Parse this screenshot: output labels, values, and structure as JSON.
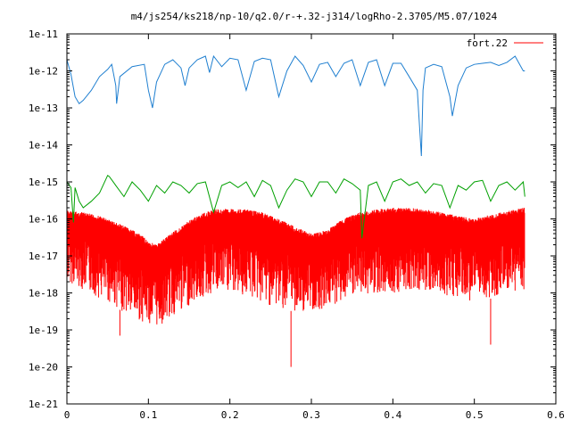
{
  "chart_data": {
    "type": "line",
    "title": "m4/js254/ks218/np-10/q2.0/r-+.32-j314/logRho-2.3705/M5.07/1024",
    "xlabel": "",
    "ylabel": "",
    "xlim": [
      0,
      0.6
    ],
    "ylim": [
      1e-21,
      1e-11
    ],
    "yscale": "log",
    "grid": false,
    "legend_position": "top-right",
    "x_ticks": [
      "0",
      "0.1",
      "0.2",
      "0.3",
      "0.4",
      "0.5",
      "0.6"
    ],
    "x_tick_values": [
      0,
      0.1,
      0.2,
      0.3,
      0.4,
      0.5,
      0.6
    ],
    "y_ticks": [
      "1e-21",
      "1e-20",
      "1e-19",
      "1e-18",
      "1e-17",
      "1e-16",
      "1e-15",
      "1e-14",
      "1e-13",
      "1e-12",
      "1e-11"
    ],
    "y_tick_values": [
      1e-21,
      1e-20,
      1e-19,
      1e-18,
      1e-17,
      1e-16,
      1e-15,
      1e-14,
      1e-13,
      1e-12,
      1e-11
    ],
    "series": [
      {
        "name": "",
        "color": "#1f7fd0",
        "x": [
          0,
          0.005,
          0.01,
          0.015,
          0.02,
          0.03,
          0.04,
          0.05,
          0.055,
          0.06,
          0.061,
          0.065,
          0.08,
          0.095,
          0.1,
          0.105,
          0.11,
          0.12,
          0.13,
          0.14,
          0.145,
          0.15,
          0.16,
          0.17,
          0.175,
          0.18,
          0.19,
          0.2,
          0.21,
          0.22,
          0.23,
          0.24,
          0.25,
          0.26,
          0.27,
          0.28,
          0.29,
          0.3,
          0.31,
          0.32,
          0.33,
          0.34,
          0.35,
          0.36,
          0.37,
          0.38,
          0.39,
          0.4,
          0.41,
          0.42,
          0.43,
          0.435,
          0.437,
          0.44,
          0.45,
          0.46,
          0.47,
          0.473,
          0.48,
          0.49,
          0.5,
          0.51,
          0.52,
          0.53,
          0.54,
          0.55,
          0.56,
          0.562
        ],
        "y": [
          2e-12,
          8e-13,
          2e-13,
          1.3e-13,
          1.6e-13,
          3e-13,
          7e-13,
          1.1e-12,
          1.5e-12,
          4e-13,
          1.3e-13,
          7e-13,
          1.3e-12,
          1.5e-12,
          3e-13,
          1e-13,
          5e-13,
          1.5e-12,
          2e-12,
          1.2e-12,
          4e-13,
          1.2e-12,
          2e-12,
          2.5e-12,
          9e-13,
          2.5e-12,
          1.3e-12,
          2.2e-12,
          2e-12,
          3e-13,
          1.8e-12,
          2.2e-12,
          2e-12,
          2e-13,
          1e-12,
          2.5e-12,
          1.4e-12,
          5e-13,
          1.5e-12,
          1.7e-12,
          7e-13,
          1.6e-12,
          2e-12,
          4e-13,
          1.7e-12,
          2e-12,
          4e-13,
          1.6e-12,
          1.6e-12,
          7e-13,
          3e-13,
          5e-15,
          3e-13,
          1.2e-12,
          1.5e-12,
          1.3e-12,
          2e-13,
          6e-14,
          4e-13,
          1.2e-12,
          1.5e-12,
          1.6e-12,
          1.7e-12,
          1.4e-12,
          1.7e-12,
          2.5e-12,
          1e-12,
          1e-12
        ]
      },
      {
        "name": "",
        "color": "#00a000",
        "x": [
          0,
          0.005,
          0.008,
          0.01,
          0.015,
          0.02,
          0.03,
          0.04,
          0.05,
          0.052,
          0.06,
          0.07,
          0.08,
          0.09,
          0.1,
          0.11,
          0.12,
          0.13,
          0.14,
          0.15,
          0.16,
          0.17,
          0.18,
          0.19,
          0.2,
          0.21,
          0.22,
          0.23,
          0.24,
          0.25,
          0.26,
          0.27,
          0.28,
          0.29,
          0.3,
          0.31,
          0.32,
          0.33,
          0.34,
          0.35,
          0.36,
          0.362,
          0.37,
          0.38,
          0.39,
          0.4,
          0.41,
          0.42,
          0.43,
          0.44,
          0.45,
          0.46,
          0.47,
          0.48,
          0.49,
          0.5,
          0.51,
          0.52,
          0.53,
          0.54,
          0.55,
          0.56,
          0.562
        ],
        "y": [
          1e-15,
          7e-16,
          8e-17,
          7e-16,
          3e-16,
          2e-16,
          3e-16,
          5e-16,
          1.5e-15,
          1.4e-15,
          8e-16,
          4e-16,
          1e-15,
          6e-16,
          3e-16,
          8e-16,
          5e-16,
          1e-15,
          8e-16,
          5e-16,
          9e-16,
          1e-15,
          1.5e-16,
          8e-16,
          1e-15,
          7e-16,
          1e-15,
          4e-16,
          1.1e-15,
          8e-16,
          2e-16,
          6e-16,
          1.2e-15,
          1e-15,
          4e-16,
          1e-15,
          1e-15,
          5e-16,
          1.2e-15,
          9e-16,
          6e-16,
          3e-17,
          8e-16,
          1e-15,
          3e-16,
          1e-15,
          1.2e-15,
          8e-16,
          1e-15,
          5e-16,
          9e-16,
          8e-16,
          2e-16,
          8e-16,
          6e-16,
          1e-15,
          1.1e-15,
          3e-16,
          8e-16,
          1e-15,
          6e-16,
          1e-15,
          4e-16
        ]
      },
      {
        "name": "fort.22",
        "color": "#ff0000",
        "x": [
          0,
          0.02,
          0.04,
          0.06,
          0.08,
          0.1,
          0.11,
          0.12,
          0.14,
          0.16,
          0.18,
          0.2,
          0.22,
          0.24,
          0.26,
          0.28,
          0.3,
          0.32,
          0.34,
          0.36,
          0.38,
          0.4,
          0.42,
          0.44,
          0.46,
          0.48,
          0.5,
          0.52,
          0.54,
          0.56,
          0.562
        ],
        "y_upper": [
          1.7e-16,
          1.5e-16,
          1.2e-16,
          8e-17,
          5e-17,
          2.5e-17,
          2e-17,
          3e-17,
          6e-17,
          1.2e-16,
          1.8e-16,
          1.9e-16,
          1.8e-16,
          1.5e-16,
          1e-16,
          6e-17,
          4e-17,
          5e-17,
          1e-16,
          1.5e-16,
          1.8e-16,
          2e-16,
          2e-16,
          1.8e-16,
          1.5e-16,
          1.2e-16,
          1e-16,
          1.3e-16,
          1.6e-16,
          2e-16,
          2e-16
        ],
        "y_lower": [
          2e-18,
          1.2e-18,
          7e-19,
          4e-19,
          2e-19,
          1.5e-19,
          1.2e-19,
          1.5e-19,
          3e-19,
          6e-19,
          9e-19,
          1e-18,
          8e-19,
          5e-19,
          4e-19,
          3e-19,
          3e-19,
          4e-19,
          6e-19,
          8e-19,
          1e-18,
          1e-18,
          1.2e-18,
          1.1e-18,
          9e-19,
          7e-19,
          6e-19,
          7e-19,
          1e-18,
          1.2e-18,
          1.2e-18
        ],
        "spikes": [
          {
            "x": 0.065,
            "y": 7e-20
          },
          {
            "x": 0.12,
            "y": 1.5e-19
          },
          {
            "x": 0.275,
            "y": 1e-20
          },
          {
            "x": 0.52,
            "y": 4e-20
          }
        ]
      }
    ]
  }
}
